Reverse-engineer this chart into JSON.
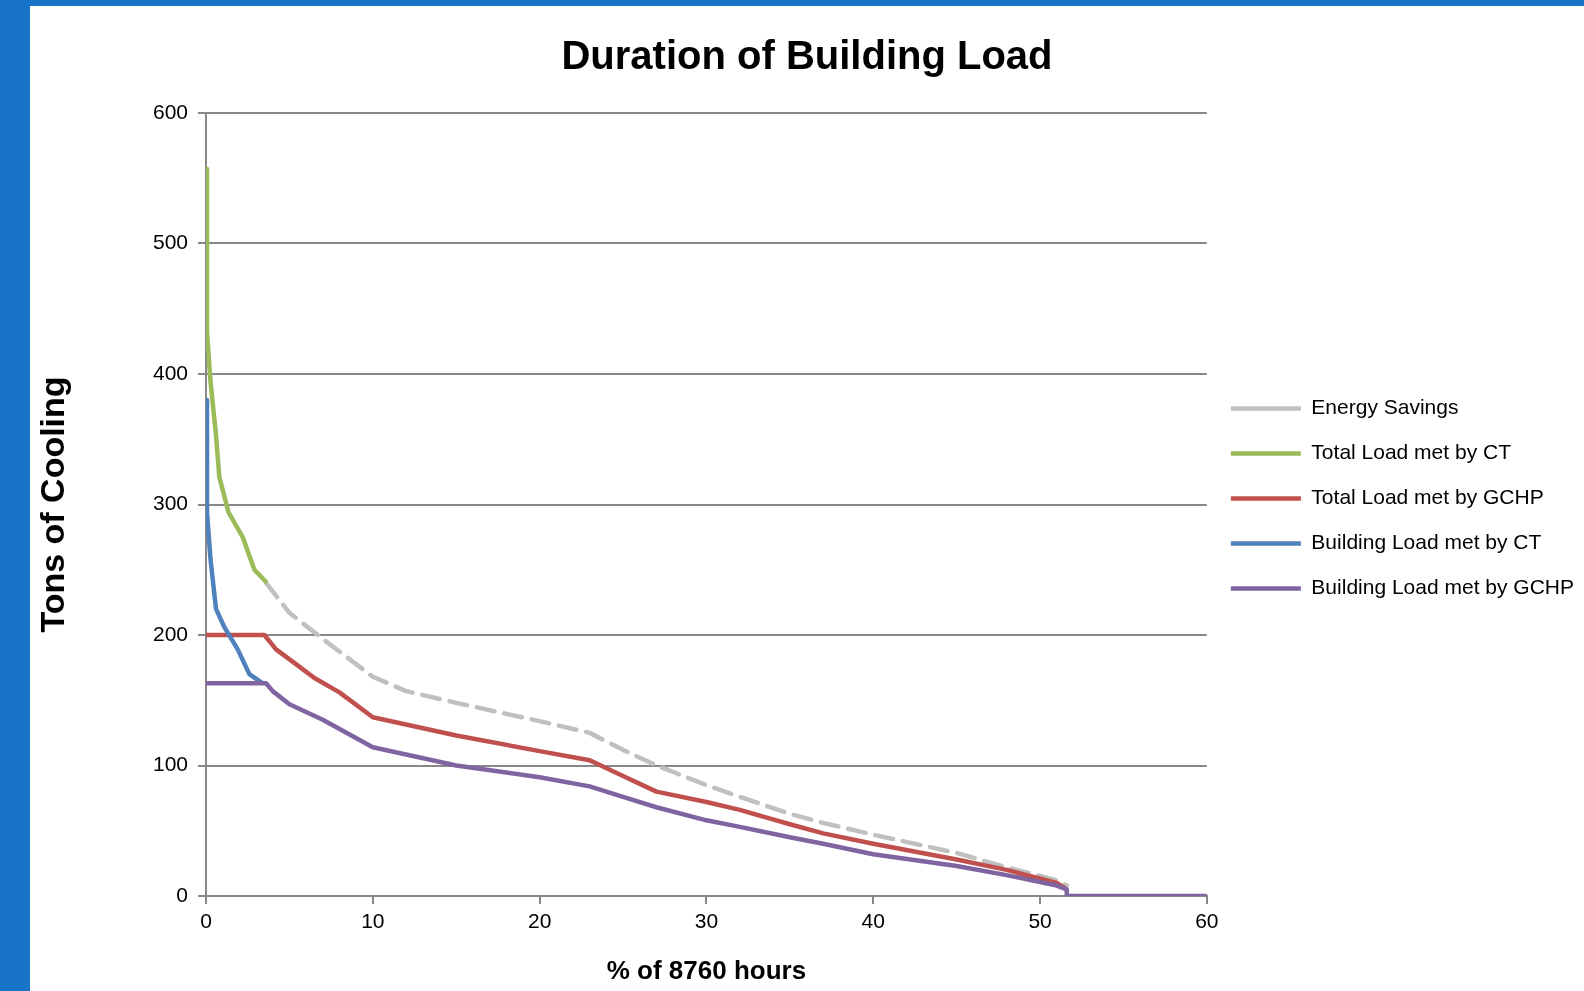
{
  "chart_data": {
    "type": "line",
    "title": "Duration of Building Load",
    "xlabel": "% of 8760 hours",
    "ylabel": "Tons of Cooling",
    "xlim": [
      0,
      60
    ],
    "ylim": [
      0,
      600
    ],
    "xticks": [
      0,
      10,
      20,
      30,
      40,
      50,
      60
    ],
    "yticks": [
      0,
      100,
      200,
      300,
      400,
      500,
      600
    ],
    "grid": "y",
    "legend": "right",
    "marker": "none",
    "line_style": "solid",
    "series": [
      {
        "name": "Energy Savings",
        "color": "#c0c0c0",
        "line_style": "dashed",
        "x": [
          3.6,
          5,
          7,
          10,
          12,
          15,
          20,
          23,
          25,
          27,
          30,
          32,
          35,
          37,
          40,
          45,
          48,
          51,
          51.6
        ],
        "values": [
          240,
          217,
          197,
          168,
          157,
          148,
          134,
          125,
          112,
          100,
          85,
          76,
          63,
          56,
          47,
          33,
          22,
          12,
          8
        ]
      },
      {
        "name": "Total Load met by CT",
        "color": "#9bbb59",
        "x": [
          0.06,
          0.06,
          0.27,
          0.6,
          0.8,
          1.35,
          2.2,
          2.9,
          3.65
        ],
        "values": [
          557,
          432,
          394,
          353,
          321,
          294,
          275,
          250,
          240
        ]
      },
      {
        "name": "Total Load met by GCHP",
        "color": "#c0504d",
        "x": [
          0,
          3.5,
          4.2,
          5.25,
          6.5,
          8,
          10,
          15,
          20,
          23,
          25,
          27,
          30,
          32,
          35,
          37,
          40,
          45,
          48,
          51,
          51.6
        ],
        "values": [
          200,
          200,
          189,
          179,
          167,
          156,
          137,
          123,
          111,
          104,
          92,
          80,
          72,
          66,
          55,
          48,
          40,
          28,
          20,
          10,
          5
        ]
      },
      {
        "name": "Building Load met by CT",
        "color": "#4f81bd",
        "x": [
          0.06,
          0.06,
          0.27,
          0.6,
          1.1,
          1.9,
          2.6,
          3.4
        ],
        "values": [
          380,
          294,
          258,
          220,
          206,
          189,
          170,
          163
        ]
      },
      {
        "name": "Building Load met by GCHP",
        "color": "#8064a2",
        "x": [
          0,
          3.6,
          4,
          5,
          7,
          10,
          15,
          20,
          23,
          25,
          27,
          30,
          32,
          35,
          37,
          40,
          45,
          48,
          51,
          51.6,
          51.6,
          60
        ],
        "values": [
          163,
          163,
          157,
          147,
          135,
          114,
          100,
          91,
          84,
          76,
          68,
          58,
          53,
          45,
          40,
          32,
          23,
          16,
          8,
          5,
          0,
          0
        ]
      }
    ]
  }
}
